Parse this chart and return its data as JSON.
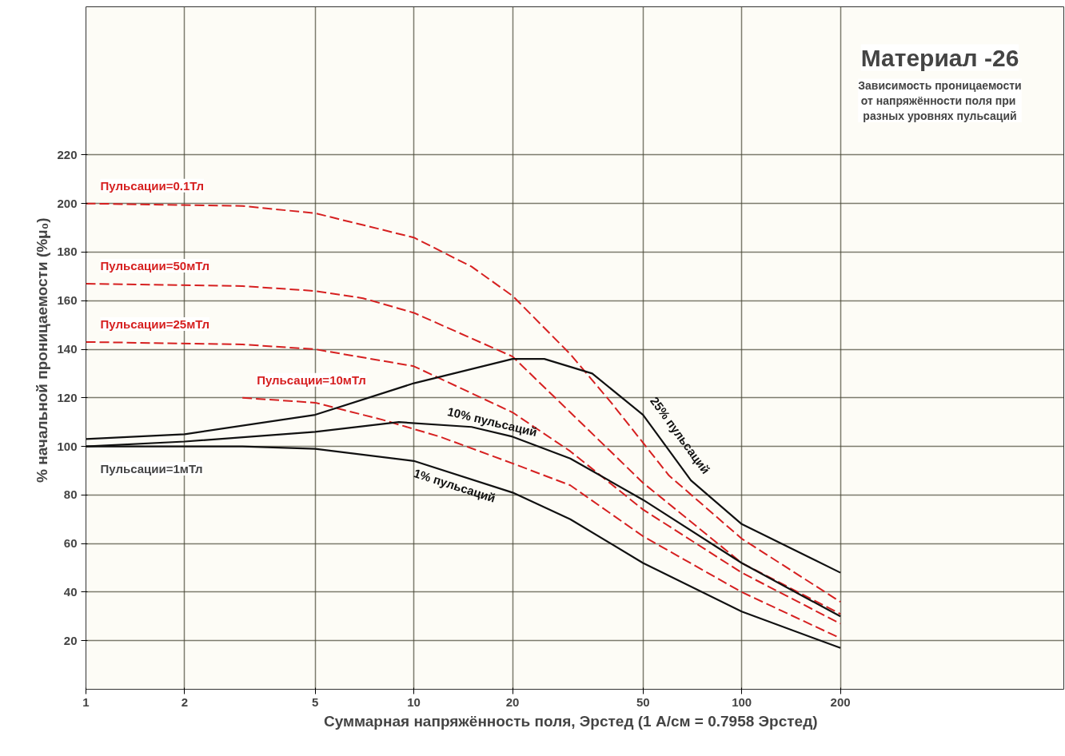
{
  "chart_data": {
    "type": "line",
    "title": "Материал -26",
    "subtitle": "Зависимость проницаемости\nот  напряжённости поля при\nразных уровнях пульсаций",
    "xlabel": "Суммарная напряжённость поля, Эрстед   (1 А/см = 0.7958 Эрстед)",
    "ylabel": "% начальной  проницаемости (%μ₀)",
    "log": "x",
    "xlim": [
      1,
      960
    ],
    "ylim": [
      0,
      281
    ],
    "xticks": [
      1,
      2,
      5,
      10,
      20,
      50,
      100,
      200
    ],
    "yticks": [
      20,
      40,
      60,
      80,
      100,
      120,
      140,
      160,
      180,
      200,
      220
    ],
    "grid": true,
    "annotations": [
      "Пульсации=1мТл"
    ],
    "series": [
      {
        "name": "Пульсации=0.1Тл",
        "color": "#d62020",
        "line_style": "dashed",
        "x": [
          1,
          3,
          5,
          10,
          15,
          20,
          30,
          40,
          60,
          100,
          200
        ],
        "values": [
          200,
          199,
          196,
          186,
          174,
          162,
          138,
          118,
          88,
          62,
          36
        ]
      },
      {
        "name": "Пульсации=50мТл",
        "color": "#d62020",
        "line_style": "dashed",
        "x": [
          1,
          3,
          5,
          7,
          10,
          20,
          30,
          50,
          100,
          200
        ],
        "values": [
          167,
          166,
          164,
          161,
          155,
          137,
          114,
          85,
          52,
          31
        ]
      },
      {
        "name": "Пульсации=25мТл",
        "color": "#d62020",
        "line_style": "dashed",
        "x": [
          1,
          3,
          5,
          10,
          20,
          30,
          50,
          100,
          200
        ],
        "values": [
          143,
          142,
          140,
          133,
          114,
          98,
          74,
          48,
          27
        ]
      },
      {
        "name": "Пульсации=10мТл",
        "color": "#d62020",
        "line_style": "dashed",
        "x": [
          3,
          5,
          8,
          12,
          20,
          30,
          50,
          100,
          200
        ],
        "values": [
          120,
          118,
          111,
          104,
          93,
          84,
          63,
          40,
          21
        ]
      },
      {
        "name": "25% пульсаций",
        "color": "#111111",
        "line_style": "solid",
        "x": [
          1,
          2,
          5,
          10,
          20,
          25,
          35,
          50,
          70,
          100,
          200
        ],
        "values": [
          103,
          105,
          113,
          126,
          136,
          136,
          130,
          113,
          86,
          68,
          48
        ]
      },
      {
        "name": "10% пульсаций",
        "color": "#111111",
        "line_style": "solid",
        "x": [
          1,
          2,
          5,
          9,
          15,
          20,
          30,
          50,
          100,
          200
        ],
        "values": [
          100,
          102,
          106,
          110,
          108,
          104,
          95,
          78,
          52,
          30
        ]
      },
      {
        "name": "1% пульсаций",
        "color": "#111111",
        "line_style": "solid",
        "x": [
          1,
          3,
          5,
          10,
          20,
          30,
          50,
          100,
          200
        ],
        "values": [
          100,
          100,
          99,
          94,
          81,
          70,
          52,
          32,
          17
        ]
      }
    ]
  }
}
